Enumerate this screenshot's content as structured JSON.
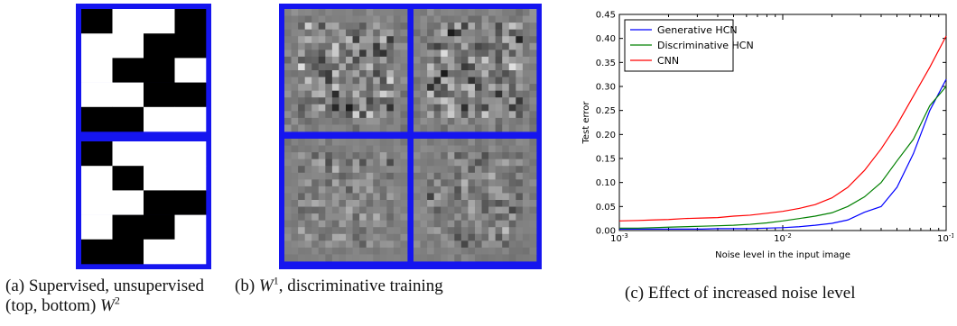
{
  "figure": {
    "panel_a": {
      "caption_prefix": "(a) Supervised, unsupervised",
      "caption_line2": "(top, bottom)",
      "caption_symbol": "W",
      "caption_sup": "2",
      "frame_color": "#1515ef",
      "top_grid": [
        [
          1,
          0,
          0,
          1
        ],
        [
          0,
          0,
          1,
          1
        ],
        [
          0,
          1,
          1,
          0
        ],
        [
          0,
          0,
          1,
          1
        ],
        [
          1,
          1,
          0,
          0
        ]
      ],
      "bottom_grid": [
        [
          1,
          0,
          0,
          0
        ],
        [
          0,
          1,
          0,
          0
        ],
        [
          0,
          0,
          1,
          1
        ],
        [
          0,
          1,
          1,
          0
        ],
        [
          1,
          1,
          0,
          0
        ]
      ]
    },
    "panel_b": {
      "caption_prefix": "(b)",
      "caption_symbol": "W",
      "caption_sup": "1",
      "caption_suffix": ", discriminative training",
      "frame_color": "#1515ef"
    },
    "panel_c": {
      "caption": "(c) Effect of increased noise level"
    }
  },
  "chart_data": {
    "type": "line",
    "xlabel": "Noise level in the input image",
    "ylabel": "Test error",
    "xscale": "log",
    "xlim": [
      0.001,
      0.1
    ],
    "ylim": [
      0.0,
      0.45
    ],
    "yticks": [
      "0.00",
      "0.05",
      "0.10",
      "0.15",
      "0.20",
      "0.25",
      "0.30",
      "0.35",
      "0.40",
      "0.45"
    ],
    "xticks": [
      {
        "base": "10",
        "exp": "-3",
        "value": 0.001
      },
      {
        "base": "10",
        "exp": "-2",
        "value": 0.01
      },
      {
        "base": "10",
        "exp": "-1",
        "value": 0.1
      }
    ],
    "legend_position": "top-left",
    "x": [
      0.001,
      0.0013,
      0.0016,
      0.002,
      0.0025,
      0.0032,
      0.004,
      0.005,
      0.0063,
      0.008,
      0.01,
      0.0126,
      0.0158,
      0.02,
      0.025,
      0.0316,
      0.04,
      0.05,
      0.063,
      0.0794,
      0.1
    ],
    "series": [
      {
        "name": "Generative HCN",
        "color": "#0000ff",
        "values": [
          0.003,
          0.003,
          0.003,
          0.003,
          0.003,
          0.003,
          0.004,
          0.004,
          0.004,
          0.005,
          0.006,
          0.008,
          0.011,
          0.015,
          0.022,
          0.038,
          0.05,
          0.09,
          0.16,
          0.25,
          0.315
        ]
      },
      {
        "name": "Discriminative HCN",
        "color": "#008000",
        "values": [
          0.005,
          0.005,
          0.006,
          0.007,
          0.008,
          0.009,
          0.01,
          0.011,
          0.013,
          0.016,
          0.02,
          0.025,
          0.03,
          0.037,
          0.05,
          0.07,
          0.1,
          0.145,
          0.19,
          0.26,
          0.3
        ]
      },
      {
        "name": "CNN",
        "color": "#ff0000",
        "values": [
          0.02,
          0.021,
          0.022,
          0.023,
          0.025,
          0.026,
          0.027,
          0.03,
          0.032,
          0.036,
          0.04,
          0.046,
          0.054,
          0.068,
          0.09,
          0.125,
          0.17,
          0.22,
          0.28,
          0.34,
          0.405
        ]
      }
    ]
  }
}
